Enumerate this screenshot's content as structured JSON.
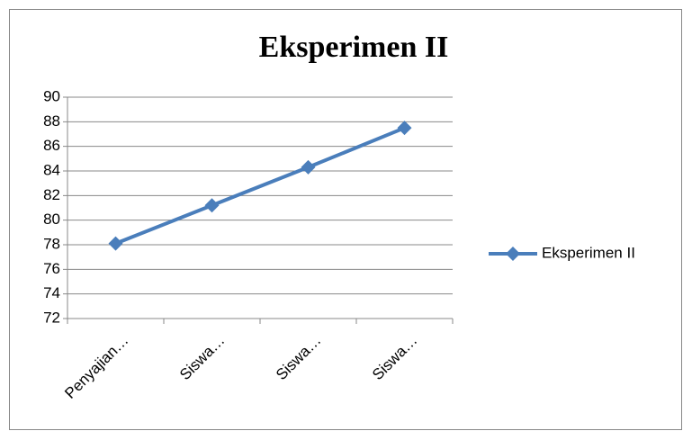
{
  "chart_data": {
    "type": "line",
    "title": "Eksperimen II",
    "categories": [
      "Penyajian…",
      "Siswa…",
      "Siswa…",
      "Siswa…"
    ],
    "series": [
      {
        "name": "Eksperimen II",
        "color": "#4a7ebb",
        "values": [
          78.1,
          81.2,
          84.3,
          87.5
        ]
      }
    ],
    "ylim": [
      72,
      90
    ],
    "yticks": [
      72,
      74,
      76,
      78,
      80,
      82,
      84,
      86,
      88,
      90
    ],
    "grid": true,
    "legend": "right"
  }
}
